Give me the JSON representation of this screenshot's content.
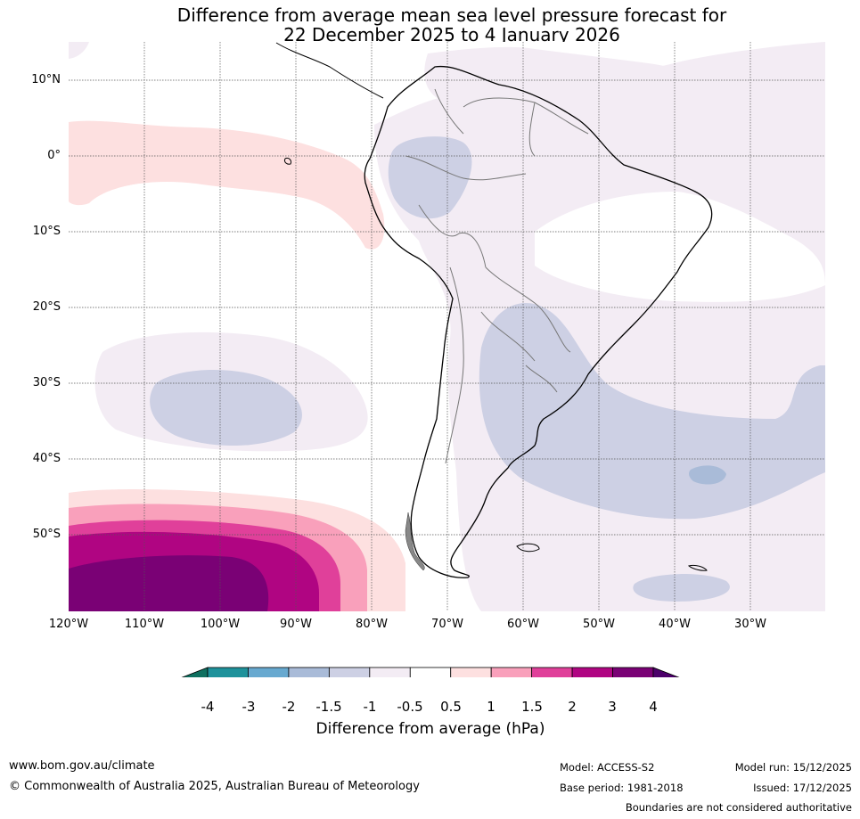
{
  "title": {
    "line1": "Difference from average mean sea level pressure forecast for",
    "line2": "22 December 2025 to 4 January 2026"
  },
  "map": {
    "latitude_labels": [
      "10°N",
      "0°",
      "10°S",
      "20°S",
      "30°S",
      "40°S",
      "50°S"
    ],
    "longitude_labels": [
      "120°W",
      "110°W",
      "100°W",
      "90°W",
      "80°W",
      "70°W",
      "60°W",
      "50°W",
      "40°W",
      "30°W"
    ]
  },
  "colorbar": {
    "title": "Difference from average (hPa)",
    "tick_labels": [
      "-4",
      "-3",
      "-2",
      "-1.5",
      "-1",
      "-0.5",
      "0.5",
      "1",
      "1.5",
      "2",
      "3",
      "4"
    ],
    "colors": [
      "#0f7060",
      "#1e929b",
      "#67a9d0",
      "#a9bbd8",
      "#cdd0e4",
      "#f3ecf4",
      "#ffffff",
      "#fde0e0",
      "#f9a0bb",
      "#e0409a",
      "#b00582",
      "#7a0175",
      "#4c006a"
    ]
  },
  "footer": {
    "website": "www.bom.gov.au/climate",
    "copyright": "© Commonwealth of Australia 2025, Australian Bureau of Meteorology",
    "model": "Model: ACCESS-S2",
    "base_period": "Base period: 1981-2018",
    "model_run": "Model run: 15/12/2025",
    "issued": "Issued: 17/12/2025",
    "disclaimer": "Boundaries are not considered authoritative"
  }
}
